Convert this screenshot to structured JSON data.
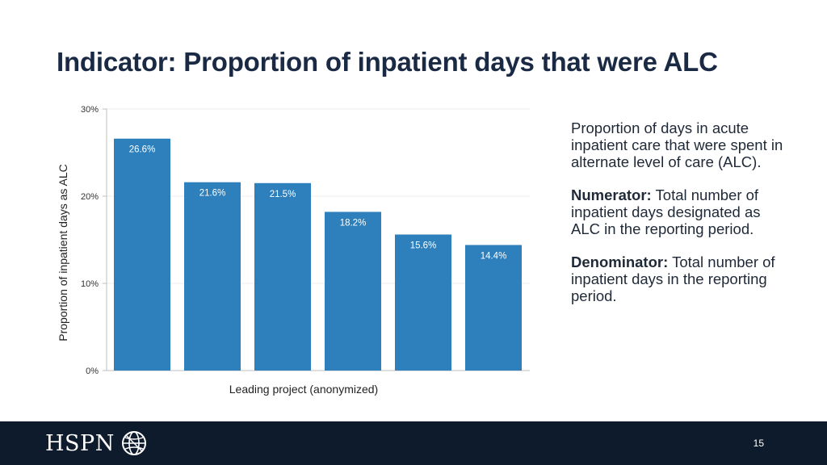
{
  "slide": {
    "title": "Indicator: Proportion of inpatient days that were ALC",
    "page_number": "15"
  },
  "description": {
    "definition": "Proportion of days in acute inpatient care that were spent in alternate level of care (ALC).",
    "numerator_label": "Numerator:",
    "numerator_text": "Total number of inpatient days designated as ALC in the reporting period.",
    "denominator_label": "Denominator:",
    "denominator_text": "Total number of inpatient days in the reporting period."
  },
  "footer": {
    "logo_text": "HSPN",
    "background": "#0e1b2c"
  },
  "chart_data": {
    "type": "bar",
    "categories": [
      "",
      "",
      "",
      "",
      "",
      ""
    ],
    "values": [
      26.6,
      21.6,
      21.5,
      18.2,
      15.6,
      14.4
    ],
    "data_labels": [
      "26.6%",
      "21.6%",
      "21.5%",
      "18.2%",
      "15.6%",
      "14.4%"
    ],
    "xlabel": "Leading project (anonymized)",
    "ylabel": "Proportion of inpatient days as ALC",
    "ylim": [
      0,
      30
    ],
    "yticks": [
      0,
      10,
      20,
      30
    ],
    "ytick_labels": [
      "0%",
      "10%",
      "20%",
      "30%"
    ],
    "bar_color": "#2e80bd",
    "grid": true,
    "legend": "none"
  }
}
